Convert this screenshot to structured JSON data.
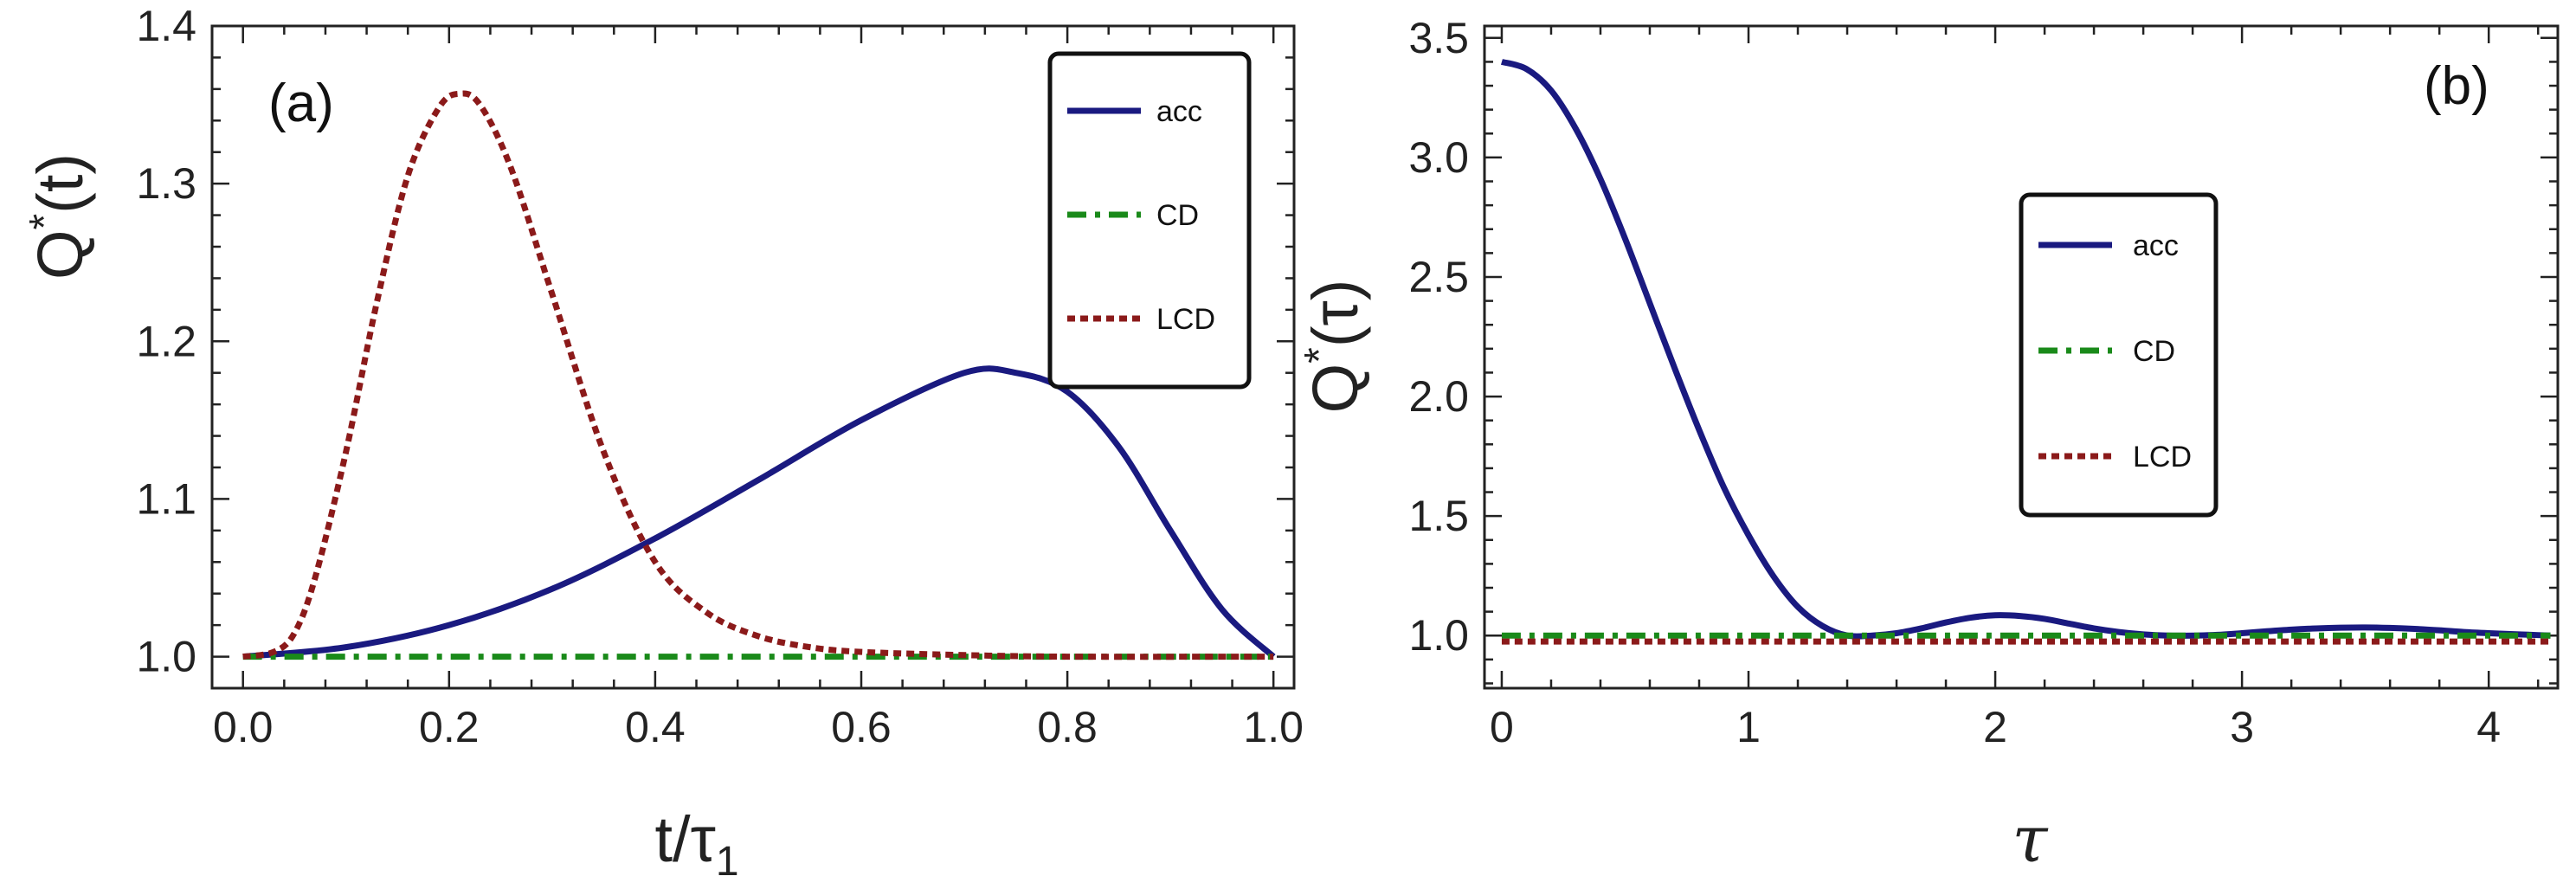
{
  "chart_data": [
    {
      "type": "line",
      "panel_label": "(a)",
      "ylabel": "Q*(t)",
      "xlabel": "t/τ1",
      "xlim": [
        -0.03,
        1.02
      ],
      "ylim": [
        0.98,
        1.4
      ],
      "xticks": [
        0.0,
        0.2,
        0.4,
        0.6,
        0.8,
        1.0
      ],
      "xtick_labels": [
        "0.0",
        "0.2",
        "0.4",
        "0.6",
        "0.8",
        "1.0"
      ],
      "yticks": [
        1.0,
        1.1,
        1.2,
        1.3,
        1.4
      ],
      "ytick_labels": [
        "1.0",
        "1.1",
        "1.2",
        "1.3",
        "1.4"
      ],
      "legend": {
        "position": "top-right",
        "entries": [
          "acc",
          "CD",
          "LCD"
        ]
      },
      "series": [
        {
          "name": "acc",
          "color": "#1a1a80",
          "style": "solid",
          "x": [
            0,
            0.1,
            0.2,
            0.3,
            0.4,
            0.5,
            0.6,
            0.7,
            0.75,
            0.8,
            0.85,
            0.9,
            0.95,
            1.0
          ],
          "y": [
            1.0,
            1.006,
            1.02,
            1.043,
            1.075,
            1.112,
            1.15,
            1.18,
            1.18,
            1.168,
            1.133,
            1.08,
            1.03,
            1.0
          ]
        },
        {
          "name": "CD",
          "color": "#1a8a1a",
          "style": "dashdot",
          "x": [
            0,
            1.0
          ],
          "y": [
            1.0,
            1.0
          ]
        },
        {
          "name": "LCD",
          "color": "#8b1a1a",
          "style": "dotted",
          "x": [
            0,
            0.03,
            0.05,
            0.07,
            0.1,
            0.13,
            0.16,
            0.19,
            0.21,
            0.23,
            0.26,
            0.3,
            0.35,
            0.4,
            0.45,
            0.5,
            0.55,
            0.6,
            0.7,
            0.8,
            1.0
          ],
          "y": [
            1.0,
            1.003,
            1.015,
            1.05,
            1.13,
            1.225,
            1.305,
            1.348,
            1.357,
            1.35,
            1.31,
            1.23,
            1.13,
            1.06,
            1.028,
            1.013,
            1.006,
            1.003,
            1.001,
            1.0,
            1.0
          ]
        }
      ]
    },
    {
      "type": "line",
      "panel_label": "(b)",
      "ylabel": "Q*(τ)",
      "xlabel": "τ",
      "xlim": [
        -0.07,
        4.28
      ],
      "ylim": [
        0.78,
        3.55
      ],
      "xticks": [
        0,
        1,
        2,
        3,
        4
      ],
      "xtick_labels": [
        "0",
        "1",
        "2",
        "3",
        "4"
      ],
      "yticks": [
        1.0,
        1.5,
        2.0,
        2.5,
        3.0,
        3.5
      ],
      "ytick_labels": [
        "1.0",
        "1.5",
        "2.0",
        "2.5",
        "3.0",
        "3.5"
      ],
      "legend": {
        "position": "center",
        "entries": [
          "acc",
          "CD",
          "LCD"
        ]
      },
      "series": [
        {
          "name": "acc",
          "color": "#1a1a80",
          "style": "solid",
          "x": [
            0,
            0.1,
            0.2,
            0.3,
            0.4,
            0.5,
            0.6,
            0.7,
            0.8,
            0.9,
            1.0,
            1.1,
            1.2,
            1.3,
            1.4,
            1.5,
            1.6,
            1.7,
            1.8,
            1.9,
            2.0,
            2.1,
            2.2,
            2.3,
            2.4,
            2.5,
            2.6,
            2.7,
            2.8,
            2.9,
            3.0,
            3.1,
            3.2,
            3.3,
            3.4,
            3.5,
            3.6,
            3.7,
            3.8,
            3.9,
            4.0,
            4.1,
            4.2,
            4.25
          ],
          "y": [
            3.4,
            3.37,
            3.28,
            3.12,
            2.91,
            2.66,
            2.39,
            2.12,
            1.86,
            1.62,
            1.42,
            1.25,
            1.12,
            1.04,
            1.0,
            1.0,
            1.01,
            1.03,
            1.055,
            1.075,
            1.085,
            1.082,
            1.07,
            1.05,
            1.03,
            1.015,
            1.005,
            1.0,
            1.0,
            1.003,
            1.01,
            1.018,
            1.025,
            1.03,
            1.033,
            1.034,
            1.032,
            1.028,
            1.022,
            1.015,
            1.01,
            1.006,
            1.002,
            1.0
          ]
        },
        {
          "name": "CD",
          "color": "#1a8a1a",
          "style": "dashdot",
          "x": [
            0,
            4.25
          ],
          "y": [
            1.0,
            1.0
          ]
        },
        {
          "name": "LCD",
          "color": "#8b1a1a",
          "style": "dotted",
          "x": [
            0,
            4.25
          ],
          "y": [
            0.975,
            0.975
          ]
        }
      ]
    }
  ]
}
